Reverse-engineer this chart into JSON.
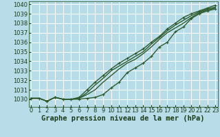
{
  "bg_color": "#b8dde8",
  "grid_color": "#ffffff",
  "line_color": "#2d5a2d",
  "xlabel": "Graphe pression niveau de la mer (hPa)",
  "ylim": [
    1029.2,
    1040.3
  ],
  "xlim": [
    -0.3,
    23.3
  ],
  "yticks": [
    1030,
    1031,
    1032,
    1033,
    1034,
    1035,
    1036,
    1037,
    1038,
    1039,
    1040
  ],
  "xticks": [
    0,
    1,
    2,
    3,
    4,
    5,
    6,
    7,
    8,
    9,
    10,
    11,
    12,
    13,
    14,
    15,
    16,
    17,
    18,
    19,
    20,
    21,
    22,
    23
  ],
  "series": [
    {
      "y": [
        1030.1,
        1030.1,
        1029.8,
        1030.2,
        1030.0,
        1030.0,
        1030.0,
        1030.1,
        1030.2,
        1030.5,
        1031.2,
        1031.8,
        1032.8,
        1033.3,
        1033.8,
        1034.5,
        1035.5,
        1036.0,
        1037.1,
        1037.6,
        1038.5,
        1039.0,
        1039.3,
        1039.5
      ],
      "marker": true,
      "lw": 1.0,
      "zorder": 3
    },
    {
      "y": [
        1030.1,
        1030.1,
        1029.8,
        1030.2,
        1030.0,
        1030.0,
        1030.1,
        1030.5,
        1031.0,
        1031.8,
        1032.5,
        1033.2,
        1033.8,
        1034.2,
        1034.8,
        1035.5,
        1036.3,
        1037.0,
        1037.5,
        1038.0,
        1038.6,
        1039.1,
        1039.4,
        1039.6
      ],
      "marker": false,
      "lw": 1.0,
      "zorder": 2
    },
    {
      "y": [
        1030.1,
        1030.1,
        1029.8,
        1030.2,
        1030.0,
        1030.0,
        1030.1,
        1030.7,
        1031.5,
        1032.2,
        1033.0,
        1033.5,
        1034.0,
        1034.5,
        1035.0,
        1035.8,
        1036.5,
        1037.2,
        1037.8,
        1038.3,
        1038.8,
        1039.2,
        1039.5,
        1039.7
      ],
      "marker": false,
      "lw": 1.0,
      "zorder": 2
    },
    {
      "y": [
        1030.1,
        1030.1,
        1029.8,
        1030.2,
        1030.0,
        1030.0,
        1030.2,
        1031.0,
        1031.8,
        1032.5,
        1033.2,
        1033.8,
        1034.3,
        1034.8,
        1035.3,
        1036.0,
        1036.6,
        1037.4,
        1038.0,
        1038.6,
        1039.0,
        1039.3,
        1039.6,
        1039.9
      ],
      "marker": true,
      "lw": 1.0,
      "zorder": 3
    }
  ],
  "xlabel_fontsize": 7.5,
  "tick_fontsize": 6.0,
  "tick_color": "#1a3a1a",
  "label_color": "#1a3a1a"
}
